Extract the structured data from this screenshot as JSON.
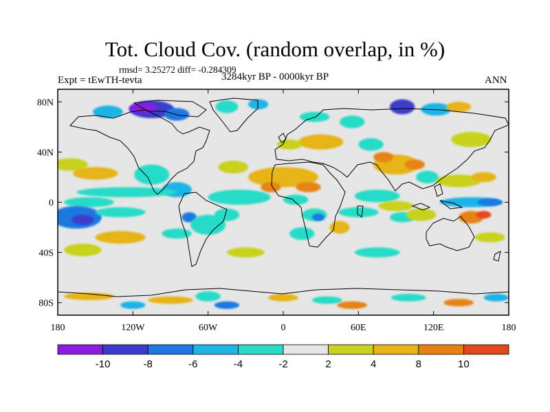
{
  "chart_data": {
    "type": "heatmap",
    "title": "Tot. Cloud Cov. (random overlap, in %)",
    "stats_text": "rmsd= 3.25272 diff= -0.284309",
    "left_label": "Expt = tEwTH-tevta",
    "center_label": "3284kyr BP - 0000kyr BP",
    "right_label": "ANN",
    "x_range": [
      -180,
      180
    ],
    "y_range": [
      -90,
      90
    ],
    "x_ticks": [
      {
        "value": -180,
        "label": "180"
      },
      {
        "value": -120,
        "label": "120W"
      },
      {
        "value": -60,
        "label": "60W"
      },
      {
        "value": 0,
        "label": "0"
      },
      {
        "value": 60,
        "label": "60E"
      },
      {
        "value": 120,
        "label": "120E"
      },
      {
        "value": 180,
        "label": "180"
      }
    ],
    "y_ticks": [
      {
        "value": 80,
        "label": "80N"
      },
      {
        "value": 40,
        "label": "40N"
      },
      {
        "value": 0,
        "label": "0"
      },
      {
        "value": -40,
        "label": "40S"
      },
      {
        "value": -80,
        "label": "80S"
      }
    ],
    "colorbar": {
      "levels": [
        -10,
        -8,
        -6,
        -4,
        -2,
        2,
        4,
        8,
        10
      ],
      "labels": [
        "-10",
        "-8",
        "-6",
        "-4",
        "-2",
        "2",
        "4",
        "8",
        "10"
      ],
      "colors": [
        "#8a1ee0",
        "#3c3ccc",
        "#1e78e0",
        "#1eb4e6",
        "#28dcc8",
        "#e6e6e6",
        "#c8d21e",
        "#e6b414",
        "#e68214",
        "#e6461e"
      ]
    },
    "anomalies": [
      {
        "lon": -105,
        "lat": 74,
        "rx": 18,
        "ry": 7,
        "value": -10
      },
      {
        "lon": -112,
        "lat": 75,
        "rx": 11,
        "ry": 4,
        "value": -12
      },
      {
        "lon": -85,
        "lat": 70,
        "rx": 10,
        "ry": 5,
        "value": -8
      },
      {
        "lon": -140,
        "lat": 72,
        "rx": 12,
        "ry": 5,
        "value": -5
      },
      {
        "lon": -45,
        "lat": 76,
        "rx": 9,
        "ry": 5,
        "value": -4
      },
      {
        "lon": -20,
        "lat": 78,
        "rx": 8,
        "ry": 4,
        "value": -5
      },
      {
        "lon": 95,
        "lat": 76,
        "rx": 10,
        "ry": 6,
        "value": -9
      },
      {
        "lon": 122,
        "lat": 74,
        "rx": 12,
        "ry": 5,
        "value": -6
      },
      {
        "lon": 140,
        "lat": 76,
        "rx": 10,
        "ry": 4,
        "value": 5
      },
      {
        "lon": 55,
        "lat": 64,
        "rx": 10,
        "ry": 5,
        "value": -3
      },
      {
        "lon": 25,
        "lat": 68,
        "rx": 12,
        "ry": 4,
        "value": -3
      },
      {
        "lon": 30,
        "lat": 48,
        "rx": 18,
        "ry": 6,
        "value": 5
      },
      {
        "lon": 5,
        "lat": 46,
        "rx": 10,
        "ry": 4,
        "value": 3
      },
      {
        "lon": 70,
        "lat": 46,
        "rx": 10,
        "ry": 5,
        "value": -3
      },
      {
        "lon": 150,
        "lat": 50,
        "rx": 16,
        "ry": 6,
        "value": 3
      },
      {
        "lon": -170,
        "lat": 30,
        "rx": 14,
        "ry": 5,
        "value": 3
      },
      {
        "lon": -150,
        "lat": 23,
        "rx": 18,
        "ry": 5,
        "value": 4
      },
      {
        "lon": -40,
        "lat": 28,
        "rx": 12,
        "ry": 5,
        "value": 3
      },
      {
        "lon": 0,
        "lat": 20,
        "rx": 28,
        "ry": 8,
        "value": 6
      },
      {
        "lon": 20,
        "lat": 12,
        "rx": 10,
        "ry": 4,
        "value": 9
      },
      {
        "lon": -10,
        "lat": 12,
        "rx": 8,
        "ry": 4,
        "value": 8
      },
      {
        "lon": 90,
        "lat": 30,
        "rx": 18,
        "ry": 8,
        "value": 6
      },
      {
        "lon": 80,
        "lat": 36,
        "rx": 8,
        "ry": 4,
        "value": 9
      },
      {
        "lon": 105,
        "lat": 30,
        "rx": 8,
        "ry": 4,
        "value": 8
      },
      {
        "lon": 115,
        "lat": 20,
        "rx": 9,
        "ry": 5,
        "value": -4
      },
      {
        "lon": 140,
        "lat": 17,
        "rx": 18,
        "ry": 5,
        "value": 3
      },
      {
        "lon": 160,
        "lat": 20,
        "rx": 10,
        "ry": 4,
        "value": 4
      },
      {
        "lon": -105,
        "lat": 22,
        "rx": 14,
        "ry": 8,
        "value": -4
      },
      {
        "lon": -85,
        "lat": 10,
        "rx": 12,
        "ry": 6,
        "value": -5
      },
      {
        "lon": -125,
        "lat": 8,
        "rx": 40,
        "ry": 4,
        "value": -3
      },
      {
        "lon": -155,
        "lat": 0,
        "rx": 20,
        "ry": 4,
        "value": -4
      },
      {
        "lon": -35,
        "lat": 4,
        "rx": 25,
        "ry": 6,
        "value": -3
      },
      {
        "lon": 10,
        "lat": 2,
        "rx": 10,
        "ry": 4,
        "value": -4
      },
      {
        "lon": 75,
        "lat": 5,
        "rx": 18,
        "ry": 5,
        "value": -3
      },
      {
        "lon": 90,
        "lat": -3,
        "rx": 14,
        "ry": 4,
        "value": 3
      },
      {
        "lon": 150,
        "lat": 0,
        "rx": 25,
        "ry": 4,
        "value": -5
      },
      {
        "lon": 165,
        "lat": 0,
        "rx": 10,
        "ry": 3,
        "value": -8
      },
      {
        "lon": -165,
        "lat": -12,
        "rx": 20,
        "ry": 9,
        "value": -7
      },
      {
        "lon": -160,
        "lat": -14,
        "rx": 9,
        "ry": 4,
        "value": -10
      },
      {
        "lon": -130,
        "lat": -8,
        "rx": 20,
        "ry": 4,
        "value": -3
      },
      {
        "lon": -75,
        "lat": -12,
        "rx": 6,
        "ry": 4,
        "value": -7
      },
      {
        "lon": -60,
        "lat": -18,
        "rx": 14,
        "ry": 8,
        "value": -4
      },
      {
        "lon": -45,
        "lat": -10,
        "rx": 10,
        "ry": 5,
        "value": -3
      },
      {
        "lon": -85,
        "lat": -25,
        "rx": 12,
        "ry": 4,
        "value": -3
      },
      {
        "lon": -130,
        "lat": -28,
        "rx": 20,
        "ry": 5,
        "value": 4
      },
      {
        "lon": -160,
        "lat": -38,
        "rx": 15,
        "ry": 5,
        "value": 3
      },
      {
        "lon": 25,
        "lat": -10,
        "rx": 10,
        "ry": 5,
        "value": -4
      },
      {
        "lon": 28,
        "lat": -12,
        "rx": 5,
        "ry": 3,
        "value": -8
      },
      {
        "lon": 15,
        "lat": -25,
        "rx": 10,
        "ry": 5,
        "value": -3
      },
      {
        "lon": 45,
        "lat": -20,
        "rx": 8,
        "ry": 5,
        "value": 5
      },
      {
        "lon": 60,
        "lat": -8,
        "rx": 16,
        "ry": 4,
        "value": -3
      },
      {
        "lon": 95,
        "lat": -12,
        "rx": 10,
        "ry": 4,
        "value": -3
      },
      {
        "lon": 110,
        "lat": -10,
        "rx": 12,
        "ry": 5,
        "value": 3
      },
      {
        "lon": 150,
        "lat": -12,
        "rx": 10,
        "ry": 5,
        "value": 9
      },
      {
        "lon": 160,
        "lat": -10,
        "rx": 6,
        "ry": 3,
        "value": 11
      },
      {
        "lon": 165,
        "lat": -28,
        "rx": 12,
        "ry": 4,
        "value": 3
      },
      {
        "lon": 75,
        "lat": -40,
        "rx": 18,
        "ry": 4,
        "value": -3
      },
      {
        "lon": -30,
        "lat": -40,
        "rx": 15,
        "ry": 4,
        "value": 3
      },
      {
        "lon": -155,
        "lat": -75,
        "rx": 20,
        "ry": 3,
        "value": 6
      },
      {
        "lon": -120,
        "lat": -82,
        "rx": 10,
        "ry": 3,
        "value": -5
      },
      {
        "lon": -90,
        "lat": -78,
        "rx": 18,
        "ry": 3,
        "value": 4
      },
      {
        "lon": -60,
        "lat": -75,
        "rx": 10,
        "ry": 4,
        "value": -4
      },
      {
        "lon": -45,
        "lat": -82,
        "rx": 10,
        "ry": 3,
        "value": -8
      },
      {
        "lon": 0,
        "lat": -76,
        "rx": 12,
        "ry": 3,
        "value": 6
      },
      {
        "lon": 35,
        "lat": -78,
        "rx": 12,
        "ry": 3,
        "value": -4
      },
      {
        "lon": 55,
        "lat": -82,
        "rx": 12,
        "ry": 3,
        "value": 8
      },
      {
        "lon": 100,
        "lat": -76,
        "rx": 14,
        "ry": 3,
        "value": -3
      },
      {
        "lon": 140,
        "lat": -80,
        "rx": 12,
        "ry": 3,
        "value": 9
      },
      {
        "lon": 170,
        "lat": -76,
        "rx": 10,
        "ry": 3,
        "value": -5
      }
    ]
  }
}
